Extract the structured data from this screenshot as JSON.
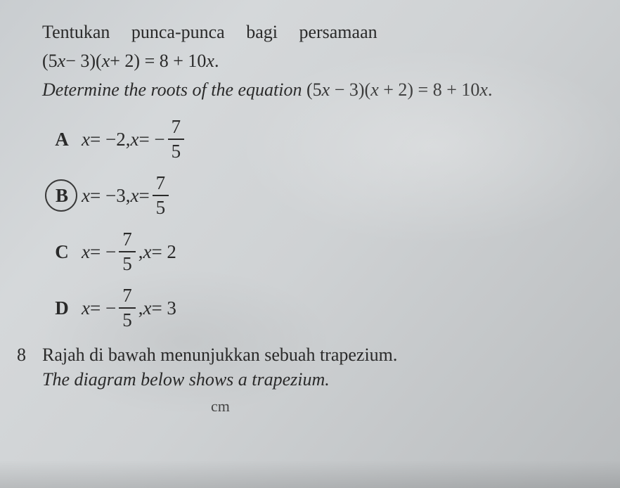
{
  "question": {
    "line1_ms": "Tentukan punca-punca bagi persamaan",
    "line2_eq": "(5x − 3)(x + 2) = 8 + 10x.",
    "line3_en": "Determine the roots of the equation (5x − 3)(x + 2) = 8 + 10x."
  },
  "options": {
    "A": {
      "letter": "A",
      "x1_pre": "x = −2, x = −",
      "frac_num": "7",
      "frac_den": "5",
      "circled": false
    },
    "B": {
      "letter": "B",
      "x1_pre": "x = −3, x = ",
      "frac_num": "7",
      "frac_den": "5",
      "circled": true
    },
    "C": {
      "letter": "C",
      "x1_pre": "x = − ",
      "frac_num": "7",
      "frac_den": "5",
      "post": ", x = 2",
      "circled": false
    },
    "D": {
      "letter": "D",
      "x1_pre": "x = − ",
      "frac_num": "7",
      "frac_den": "5",
      "post": ", x = 3",
      "circled": false
    }
  },
  "q8": {
    "number": "8",
    "line1_ms": "Rajah di bawah menunjukkan sebuah trapezium.",
    "line2_en": "The diagram below shows a trapezium."
  },
  "fragment": {
    "cm": "cm"
  },
  "style": {
    "text_color": "#2a2a2a",
    "bg_start": "#c9cdd0",
    "bg_end": "#b9bcbe",
    "circle_color": "#3a3a3a",
    "font_body_pt": 20,
    "font_family": "Georgia"
  }
}
